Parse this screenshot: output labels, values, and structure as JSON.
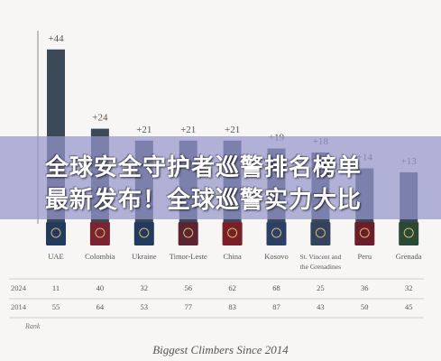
{
  "chart_data": {
    "type": "bar",
    "categories": [
      "UAE",
      "Colombia",
      "Ukraine",
      "Timor-Leste",
      "China",
      "Kosovo",
      "St. Vincent and the Grenadines",
      "Peru",
      "Grenada"
    ],
    "category_lines": [
      [
        "UAE"
      ],
      [
        "Colombia"
      ],
      [
        "Ukraine"
      ],
      [
        "Timor-Leste"
      ],
      [
        "China"
      ],
      [
        "Kosovo"
      ],
      [
        "St. Vincent and",
        "the Grenadines"
      ],
      [
        "Peru"
      ],
      [
        "Grenada"
      ]
    ],
    "values": [
      44,
      24,
      21,
      21,
      21,
      19,
      18,
      14,
      13
    ],
    "value_labels": [
      "+44",
      "+24",
      "+21",
      "+21",
      "+21",
      "+19",
      "+18",
      "+14",
      "+13"
    ],
    "ylim": [
      0,
      46
    ],
    "bar_color": "#3b4856",
    "table": {
      "rows": [
        {
          "label": "2024",
          "values": [
            "11",
            "40",
            "32",
            "56",
            "62",
            "68",
            "25",
            "36",
            "32"
          ]
        },
        {
          "label": "2014",
          "values": [
            "55",
            "64",
            "53",
            "77",
            "83",
            "87",
            "43",
            "50",
            "45"
          ]
        }
      ],
      "footer_label": "Rank"
    },
    "title": "Biggest Climbers Since 2014",
    "passport_colors": [
      "#223a5e",
      "#7a2432",
      "#223a5e",
      "#5c2430",
      "#7a1f28",
      "#2c3f66",
      "#34425e",
      "#6a1e2a",
      "#2a4a36"
    ]
  },
  "overlay": {
    "line1": "全球安全守护者巡警排名榜单",
    "line2": "最新发布！全球巡警实力大比"
  }
}
